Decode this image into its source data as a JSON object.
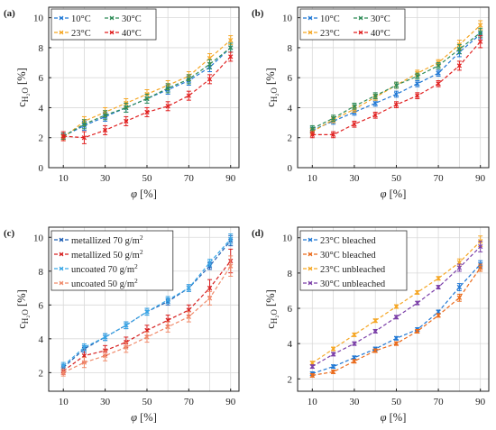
{
  "figure": {
    "x_ticks": [
      "10",
      "30",
      "50",
      "70",
      "90"
    ]
  },
  "chart_data": [
    {
      "panel": "(a)",
      "type": "line",
      "xlabel": "φ [%]",
      "ylabel": "c",
      "ylabel_subscript": "H₂O",
      "ylabel_unit": " [%]",
      "x": [
        10,
        20,
        30,
        40,
        50,
        60,
        70,
        80,
        90
      ],
      "xlim": [
        3,
        94
      ],
      "ylim": [
        0,
        10.7
      ],
      "yticks": [
        0,
        2,
        4,
        6,
        8,
        10
      ],
      "legend_cols": 2,
      "series": [
        {
          "name": "10°C",
          "color": "#1f77d4",
          "marker": "x",
          "values": [
            2.1,
            2.8,
            3.4,
            4.0,
            4.6,
            5.2,
            5.8,
            6.7,
            8.0
          ],
          "err": [
            0.2,
            0.3,
            0.3,
            0.3,
            0.3,
            0.3,
            0.3,
            0.3,
            0.3
          ]
        },
        {
          "name": "23°C",
          "color": "#f5a623",
          "marker": "x",
          "values": [
            2.0,
            3.1,
            3.7,
            4.3,
            4.9,
            5.5,
            6.1,
            7.3,
            8.5
          ],
          "err": [
            0.2,
            0.3,
            0.3,
            0.3,
            0.3,
            0.3,
            0.3,
            0.3,
            0.3
          ]
        },
        {
          "name": "30°C",
          "color": "#2e8b57",
          "marker": "x",
          "values": [
            2.1,
            2.9,
            3.5,
            4.0,
            4.6,
            5.3,
            5.9,
            6.9,
            8.0
          ],
          "err": [
            0.2,
            0.3,
            0.3,
            0.3,
            0.3,
            0.3,
            0.3,
            0.3,
            0.3
          ]
        },
        {
          "name": "40°C",
          "color": "#e02020",
          "marker": "x",
          "values": [
            2.1,
            2.0,
            2.5,
            3.1,
            3.7,
            4.1,
            4.8,
            5.9,
            7.4
          ],
          "err": [
            0.3,
            0.4,
            0.3,
            0.3,
            0.3,
            0.3,
            0.3,
            0.3,
            0.3
          ]
        }
      ]
    },
    {
      "panel": "(b)",
      "type": "line",
      "xlabel": "φ [%]",
      "ylabel": "c",
      "ylabel_subscript": "H₂O",
      "ylabel_unit": " [%]",
      "x": [
        10,
        20,
        30,
        40,
        50,
        60,
        70,
        80,
        90
      ],
      "xlim": [
        3,
        94
      ],
      "ylim": [
        0,
        10.7
      ],
      "yticks": [
        0,
        2,
        4,
        6,
        8,
        10
      ],
      "legend_cols": 2,
      "series": [
        {
          "name": "10°C",
          "color": "#1f77d4",
          "marker": "x",
          "values": [
            2.5,
            3.1,
            3.7,
            4.3,
            4.9,
            5.6,
            6.3,
            7.7,
            8.9
          ],
          "err": [
            0.2,
            0.2,
            0.2,
            0.2,
            0.2,
            0.2,
            0.2,
            0.3,
            0.3
          ]
        },
        {
          "name": "23°C",
          "color": "#f5a623",
          "marker": "x",
          "values": [
            2.4,
            3.2,
            3.9,
            4.7,
            5.5,
            6.3,
            7.0,
            8.2,
            9.5
          ],
          "err": [
            0.2,
            0.2,
            0.2,
            0.2,
            0.2,
            0.2,
            0.2,
            0.3,
            0.3
          ]
        },
        {
          "name": "30°C",
          "color": "#2e8b57",
          "marker": "x",
          "values": [
            2.6,
            3.3,
            4.1,
            4.8,
            5.5,
            6.1,
            6.8,
            7.9,
            9.0
          ],
          "err": [
            0.2,
            0.2,
            0.2,
            0.2,
            0.2,
            0.2,
            0.2,
            0.3,
            0.3
          ]
        },
        {
          "name": "40°C",
          "color": "#e02020",
          "marker": "x",
          "values": [
            2.2,
            2.2,
            2.9,
            3.5,
            4.2,
            4.8,
            5.6,
            6.8,
            8.4
          ],
          "err": [
            0.2,
            0.2,
            0.2,
            0.2,
            0.2,
            0.2,
            0.2,
            0.3,
            0.4
          ]
        }
      ]
    },
    {
      "panel": "(c)",
      "type": "line",
      "xlabel": "φ [%]",
      "ylabel": "c",
      "ylabel_subscript": "H₂O",
      "ylabel_unit": " [%]",
      "x": [
        10,
        20,
        30,
        40,
        50,
        60,
        70,
        80,
        90
      ],
      "xlim": [
        3,
        94
      ],
      "ylim": [
        0.9,
        10.6
      ],
      "yticks": [
        2,
        4,
        6,
        8,
        10
      ],
      "legend_cols": 1,
      "series": [
        {
          "name": "metallized 70 g/m",
          "sup": "2",
          "color": "#1f5fb4",
          "marker": "x",
          "values": [
            2.3,
            3.4,
            4.1,
            4.8,
            5.6,
            6.2,
            7.0,
            8.3,
            9.8
          ],
          "err": [
            0.2,
            0.2,
            0.2,
            0.2,
            0.2,
            0.2,
            0.2,
            0.2,
            0.3
          ]
        },
        {
          "name": "metallized 50 g/m",
          "sup": "2",
          "color": "#d62020",
          "marker": "x",
          "values": [
            2.1,
            3.0,
            3.3,
            3.8,
            4.5,
            5.1,
            5.7,
            7.0,
            8.6
          ],
          "err": [
            0.2,
            0.4,
            0.3,
            0.3,
            0.3,
            0.3,
            0.3,
            0.5,
            0.7
          ]
        },
        {
          "name": "uncoated 70 g/m",
          "sup": "2",
          "color": "#39a6e6",
          "marker": "x",
          "values": [
            2.4,
            3.5,
            4.1,
            4.8,
            5.6,
            6.3,
            7.0,
            8.5,
            9.9
          ],
          "err": [
            0.2,
            0.2,
            0.2,
            0.2,
            0.2,
            0.2,
            0.2,
            0.2,
            0.3
          ]
        },
        {
          "name": "uncoated 50 g/m",
          "sup": "2",
          "color": "#f08a6a",
          "marker": "x",
          "values": [
            2.0,
            2.6,
            3.0,
            3.5,
            4.1,
            4.7,
            5.3,
            6.4,
            8.3
          ],
          "err": [
            0.2,
            0.3,
            0.3,
            0.3,
            0.3,
            0.3,
            0.3,
            0.4,
            0.6
          ]
        }
      ]
    },
    {
      "panel": "(d)",
      "type": "line",
      "xlabel": "φ [%]",
      "ylabel": "c",
      "ylabel_subscript": "H₂O",
      "ylabel_unit": " [%]",
      "x": [
        10,
        20,
        30,
        40,
        50,
        60,
        70,
        80,
        90
      ],
      "xlim": [
        3,
        94
      ],
      "ylim": [
        1.3,
        10.6
      ],
      "yticks": [
        2,
        4,
        6,
        8,
        10
      ],
      "legend_cols": 1,
      "series": [
        {
          "name": "23°C bleached",
          "color": "#1f77d4",
          "marker": "x",
          "values": [
            2.3,
            2.7,
            3.2,
            3.7,
            4.3,
            4.8,
            5.8,
            7.2,
            8.5
          ],
          "err": [
            0.1,
            0.1,
            0.1,
            0.1,
            0.1,
            0.1,
            0.1,
            0.2,
            0.2
          ]
        },
        {
          "name": "30°C bleached",
          "color": "#ea6a1a",
          "marker": "x",
          "values": [
            2.2,
            2.4,
            3.0,
            3.6,
            4.0,
            4.7,
            5.6,
            6.6,
            8.3
          ],
          "err": [
            0.1,
            0.1,
            0.1,
            0.1,
            0.1,
            0.1,
            0.1,
            0.2,
            0.2
          ]
        },
        {
          "name": "23°C unbleached",
          "color": "#f5a623",
          "marker": "x",
          "values": [
            2.9,
            3.7,
            4.5,
            5.3,
            6.1,
            6.9,
            7.7,
            8.6,
            9.8
          ],
          "err": [
            0.1,
            0.1,
            0.1,
            0.1,
            0.1,
            0.1,
            0.1,
            0.2,
            0.3
          ]
        },
        {
          "name": "30°C unbleached",
          "color": "#7b3fa8",
          "marker": "x",
          "values": [
            2.7,
            3.4,
            4.0,
            4.7,
            5.5,
            6.3,
            7.2,
            8.3,
            9.5
          ],
          "err": [
            0.1,
            0.1,
            0.1,
            0.1,
            0.1,
            0.1,
            0.1,
            0.2,
            0.3
          ]
        }
      ]
    }
  ]
}
